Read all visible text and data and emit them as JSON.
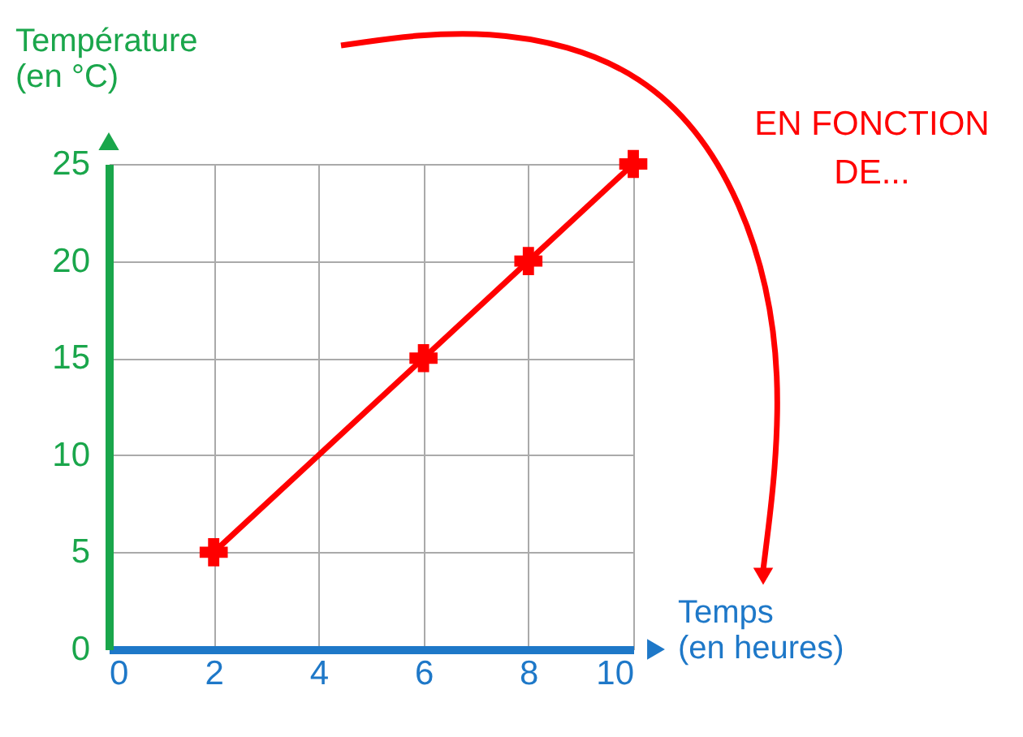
{
  "chart_data": {
    "type": "line",
    "x": [
      2,
      6,
      8,
      10
    ],
    "series": [
      {
        "color": "#ff0000",
        "values": [
          5,
          15,
          20,
          25
        ]
      }
    ],
    "xlabel": "Temps (en heures)",
    "ylabel": "Température (en °C)",
    "xlim": [
      0,
      10
    ],
    "ylim": [
      0,
      25
    ],
    "xticks": [
      0,
      2,
      4,
      6,
      8,
      10
    ],
    "yticks": [
      0,
      5,
      10,
      15,
      20,
      25
    ],
    "grid": true,
    "marker": "cross",
    "line_style": "solid",
    "annotations": [
      "EN FONCTION DE..."
    ]
  }
}
